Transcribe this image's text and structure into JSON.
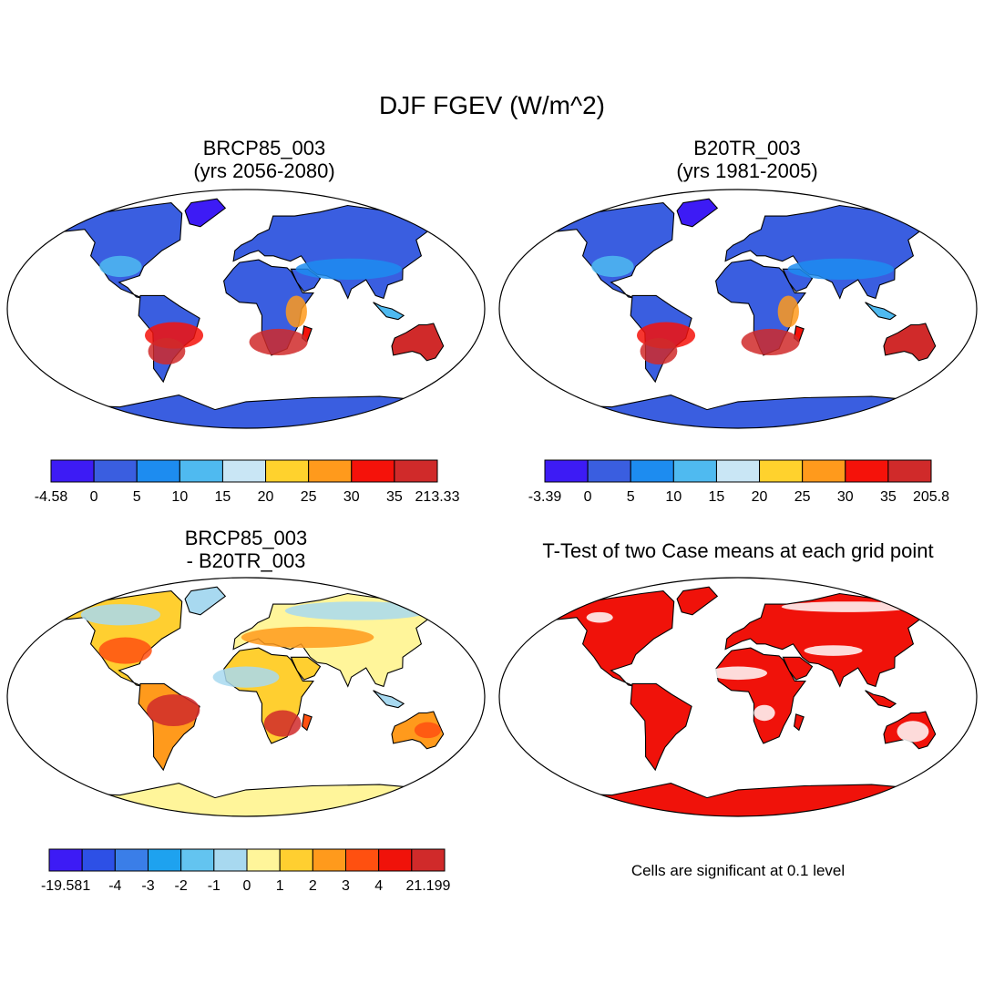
{
  "title": "DJF FGEV (W/m^2)",
  "panels": [
    {
      "id": "p1",
      "line1": "BRCP85_003",
      "line2": "(yrs 2056-2080)"
    },
    {
      "id": "p2",
      "line1": "B20TR_003",
      "line2": "(yrs 1981-2005)"
    },
    {
      "id": "p3",
      "line1": "BRCP85_003",
      "line2": "- B20TR_003"
    },
    {
      "id": "p4",
      "line1": "T-Test of two Case means at each grid point"
    }
  ],
  "significance_note": "Cells are significant at 0.1 level",
  "colorbars": [
    {
      "id": "cb1",
      "labels": [
        "-4.58",
        "0",
        "5",
        "10",
        "15",
        "20",
        "25",
        "30",
        "35",
        "213.33"
      ],
      "colors": [
        "#3d1bf5",
        "#3a5ee0",
        "#1d8cf0",
        "#4fbaf0",
        "#c9e6f5",
        "#ffd22d",
        "#ff9a1c",
        "#f5120a",
        "#d02a2a"
      ]
    },
    {
      "id": "cb2",
      "labels": [
        "-3.39",
        "0",
        "5",
        "10",
        "15",
        "20",
        "25",
        "30",
        "35",
        "205.8"
      ],
      "colors": [
        "#3d1bf5",
        "#3a5ee0",
        "#1d8cf0",
        "#4fbaf0",
        "#c9e6f5",
        "#ffd22d",
        "#ff9a1c",
        "#f5120a",
        "#d02a2a"
      ]
    },
    {
      "id": "cb3",
      "labels": [
        "-19.581",
        "-4",
        "-3",
        "-2",
        "-1",
        "0",
        "1",
        "2",
        "3",
        "4",
        "21.199"
      ],
      "colors": [
        "#3d1bf5",
        "#2d50e6",
        "#3a7ee8",
        "#1ea2ef",
        "#63c4f0",
        "#a8d9f0",
        "#fff59a",
        "#ffcf30",
        "#ff9a1c",
        "#ff5010",
        "#f0120a",
        "#d02a2a"
      ]
    }
  ],
  "chart_data": [
    {
      "type": "heatmap",
      "title": "BRCP85_003 (yrs 2056-2080)",
      "units": "W/m^2",
      "season": "DJF",
      "variable": "FGEV",
      "levels": [
        -4.58,
        0,
        5,
        10,
        15,
        20,
        25,
        30,
        35,
        213.33
      ]
    },
    {
      "type": "heatmap",
      "title": "B20TR_003 (yrs 1981-2005)",
      "units": "W/m^2",
      "season": "DJF",
      "variable": "FGEV",
      "levels": [
        -3.39,
        0,
        5,
        10,
        15,
        20,
        25,
        30,
        35,
        205.8
      ]
    },
    {
      "type": "heatmap",
      "title": "BRCP85_003 - B20TR_003",
      "units": "W/m^2",
      "levels": [
        -19.581,
        -4,
        -3,
        -2,
        -1,
        0,
        1,
        2,
        3,
        4,
        21.199
      ]
    },
    {
      "type": "heatmap",
      "title": "T-Test of two Case means at each grid point",
      "significance_level": 0.1
    }
  ]
}
